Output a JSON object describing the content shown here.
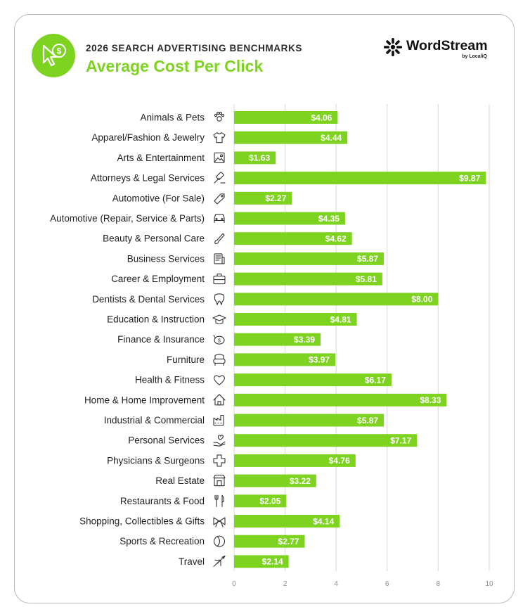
{
  "header": {
    "subtitle": "2026 SEARCH ADVERTISING BENCHMARKS",
    "title": "Average Cost Per Click",
    "badge_icon": "cursor-dollar-icon"
  },
  "brand": {
    "name": "WordStream",
    "sub": "by LocaliQ"
  },
  "colors": {
    "accent": "#7ed321",
    "text": "#1f1f1f",
    "grid": "#d9d9d9"
  },
  "chart_data": {
    "type": "bar",
    "orientation": "horizontal",
    "title": "Average Cost Per Click",
    "subtitle": "2026 SEARCH ADVERTISING BENCHMARKS",
    "xlabel": "",
    "ylabel": "",
    "xlim": [
      0,
      10
    ],
    "xticks": [
      0,
      2,
      4,
      6,
      8,
      10
    ],
    "grid": true,
    "value_prefix": "$",
    "categories": [
      "Animals & Pets",
      "Apparel/Fashion & Jewelry",
      "Arts & Entertainment",
      "Attorneys & Legal Services",
      "Automotive (For Sale)",
      "Automotive (Repair, Service & Parts)",
      "Beauty & Personal Care",
      "Business Services",
      "Career & Employment",
      "Dentists & Dental Services",
      "Education & Instruction",
      "Finance & Insurance",
      "Furniture",
      "Health & Fitness",
      "Home & Home Improvement",
      "Industrial & Commercial",
      "Personal Services",
      "Physicians & Surgeons",
      "Real Estate",
      "Restaurants & Food",
      "Shopping, Collectibles & Gifts",
      "Sports & Recreation",
      "Travel"
    ],
    "values": [
      4.06,
      4.44,
      1.63,
      9.87,
      2.27,
      4.35,
      4.62,
      5.87,
      5.81,
      8.0,
      4.81,
      3.39,
      3.97,
      6.17,
      8.33,
      5.87,
      7.17,
      4.76,
      3.22,
      2.05,
      4.14,
      2.77,
      2.14
    ],
    "value_labels": [
      "$4.06",
      "$4.44",
      "$1.63",
      "$9.87",
      "$2.27",
      "$4.35",
      "$4.62",
      "$5.87",
      "$5.81",
      "$8.00",
      "$4.81",
      "$3.39",
      "$3.97",
      "$6.17",
      "$8.33",
      "$5.87",
      "$7.17",
      "$4.76",
      "$3.22",
      "$2.05",
      "$4.14",
      "$2.77",
      "$2.14"
    ],
    "icons": [
      "paw-icon",
      "shirt-icon",
      "picture-icon",
      "gavel-icon",
      "tag-icon",
      "car-icon",
      "brush-icon",
      "document-icon",
      "briefcase-icon",
      "tooth-icon",
      "graduation-cap-icon",
      "piggy-bank-icon",
      "armchair-icon",
      "heart-icon",
      "house-icon",
      "factory-icon",
      "hand-heart-icon",
      "medical-cross-icon",
      "storefront-icon",
      "fork-knife-icon",
      "gift-bow-icon",
      "ball-icon",
      "airplane-icon"
    ]
  }
}
